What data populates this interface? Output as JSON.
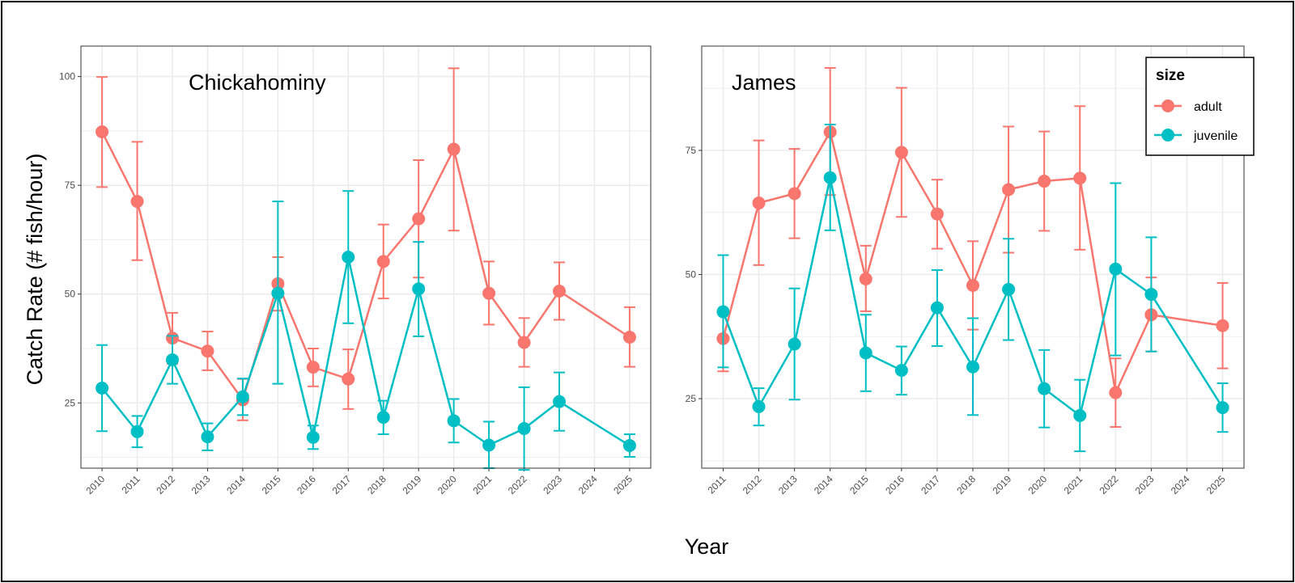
{
  "chart_data": {
    "type": "line",
    "xlabel": "Year",
    "ylabel": "Catch Rate (# fish/hour)",
    "legend": {
      "title": "size",
      "placement": "top-right",
      "entries": [
        "adult",
        "juvenile"
      ]
    },
    "colors": {
      "adult": "#F8766D",
      "juvenile": "#00BFC4",
      "grid": "#EBEBEB",
      "panel_border": "#333333"
    },
    "grid": true,
    "panels": [
      {
        "label": "Chickahominy",
        "x": [
          "2010",
          "2011",
          "2012",
          "2013",
          "2014",
          "2015",
          "2016",
          "2017",
          "2018",
          "2019",
          "2020",
          "2021",
          "2022",
          "2023",
          "2024",
          "2025"
        ],
        "yticks": [
          25,
          50,
          75,
          100
        ],
        "ylim": [
          10,
          107
        ],
        "series": [
          {
            "name": "adult",
            "points": [
              {
                "x": "2010",
                "y": 87.3,
                "lo": 74.6,
                "hi": 99.9
              },
              {
                "x": "2011",
                "y": 71.3,
                "lo": 57.8,
                "hi": 85.0
              },
              {
                "x": "2012",
                "y": 39.9,
                "lo": 34.0,
                "hi": 45.7
              },
              {
                "x": "2013",
                "y": 36.9,
                "lo": 32.5,
                "hi": 41.4
              },
              {
                "x": "2014",
                "y": 25.7,
                "lo": 21.0,
                "hi": 30.5
              },
              {
                "x": "2015",
                "y": 52.4,
                "lo": 46.2,
                "hi": 58.5
              },
              {
                "x": "2016",
                "y": 33.2,
                "lo": 28.8,
                "hi": 37.5
              },
              {
                "x": "2017",
                "y": 30.5,
                "lo": 23.6,
                "hi": 37.3
              },
              {
                "x": "2018",
                "y": 57.5,
                "lo": 49.0,
                "hi": 66.0
              },
              {
                "x": "2019",
                "y": 67.3,
                "lo": 53.8,
                "hi": 80.8
              },
              {
                "x": "2020",
                "y": 83.3,
                "lo": 64.6,
                "hi": 101.9
              },
              {
                "x": "2021",
                "y": 50.2,
                "lo": 43.0,
                "hi": 57.5
              },
              {
                "x": "2022",
                "y": 38.9,
                "lo": 33.3,
                "hi": 44.5
              },
              {
                "x": "2023",
                "y": 50.7,
                "lo": 44.1,
                "hi": 57.3
              },
              {
                "x": "2025",
                "y": 40.1,
                "lo": 33.3,
                "hi": 47.0
              }
            ]
          },
          {
            "name": "juvenile",
            "points": [
              {
                "x": "2010",
                "y": 28.4,
                "lo": 18.5,
                "hi": 38.3
              },
              {
                "x": "2011",
                "y": 18.4,
                "lo": 14.8,
                "hi": 22.0
              },
              {
                "x": "2012",
                "y": 34.9,
                "lo": 29.4,
                "hi": 40.4
              },
              {
                "x": "2013",
                "y": 17.2,
                "lo": 14.1,
                "hi": 20.3
              },
              {
                "x": "2014",
                "y": 26.4,
                "lo": 22.2,
                "hi": 30.6
              },
              {
                "x": "2015",
                "y": 50.2,
                "lo": 29.4,
                "hi": 71.3
              },
              {
                "x": "2016",
                "y": 17.1,
                "lo": 14.4,
                "hi": 19.8
              },
              {
                "x": "2017",
                "y": 58.5,
                "lo": 43.3,
                "hi": 73.7
              },
              {
                "x": "2018",
                "y": 21.7,
                "lo": 17.8,
                "hi": 25.5
              },
              {
                "x": "2019",
                "y": 51.2,
                "lo": 40.3,
                "hi": 62.0
              },
              {
                "x": "2020",
                "y": 20.9,
                "lo": 15.9,
                "hi": 25.9
              },
              {
                "x": "2021",
                "y": 15.3,
                "lo": 10.0,
                "hi": 20.7
              },
              {
                "x": "2022",
                "y": 19.1,
                "lo": 9.6,
                "hi": 28.6
              },
              {
                "x": "2023",
                "y": 25.3,
                "lo": 18.6,
                "hi": 32.0
              },
              {
                "x": "2025",
                "y": 15.2,
                "lo": 12.6,
                "hi": 17.8
              }
            ]
          }
        ]
      },
      {
        "label": "James",
        "x": [
          "2011",
          "2012",
          "2013",
          "2014",
          "2015",
          "2016",
          "2017",
          "2018",
          "2019",
          "2020",
          "2021",
          "2022",
          "2023",
          "2024",
          "2025"
        ],
        "yticks": [
          25,
          50,
          75
        ],
        "ylim": [
          11,
          96
        ],
        "series": [
          {
            "name": "adult",
            "points": [
              {
                "x": "2011",
                "y": 37.1,
                "lo": 30.5,
                "hi": 42.5
              },
              {
                "x": "2012",
                "y": 64.4,
                "lo": 51.9,
                "hi": 77.0
              },
              {
                "x": "2013",
                "y": 66.3,
                "lo": 57.3,
                "hi": 75.3
              },
              {
                "x": "2014",
                "y": 78.7,
                "lo": 66.0,
                "hi": 91.6
              },
              {
                "x": "2015",
                "y": 49.1,
                "lo": 42.6,
                "hi": 55.8
              },
              {
                "x": "2016",
                "y": 74.6,
                "lo": 61.6,
                "hi": 87.6
              },
              {
                "x": "2017",
                "y": 62.2,
                "lo": 55.2,
                "hi": 69.1
              },
              {
                "x": "2018",
                "y": 47.8,
                "lo": 38.9,
                "hi": 56.7
              },
              {
                "x": "2019",
                "y": 67.1,
                "lo": 54.4,
                "hi": 79.8
              },
              {
                "x": "2020",
                "y": 68.8,
                "lo": 58.8,
                "hi": 78.8
              },
              {
                "x": "2021",
                "y": 69.4,
                "lo": 55.0,
                "hi": 83.9
              },
              {
                "x": "2022",
                "y": 26.2,
                "lo": 19.3,
                "hi": 33.1
              },
              {
                "x": "2023",
                "y": 41.9,
                "lo": 34.5,
                "hi": 49.4
              },
              {
                "x": "2025",
                "y": 39.7,
                "lo": 31.1,
                "hi": 48.3
              }
            ]
          },
          {
            "name": "juvenile",
            "points": [
              {
                "x": "2011",
                "y": 42.5,
                "lo": 31.3,
                "hi": 53.9
              },
              {
                "x": "2012",
                "y": 23.4,
                "lo": 19.6,
                "hi": 27.1
              },
              {
                "x": "2013",
                "y": 36.0,
                "lo": 24.8,
                "hi": 47.2
              },
              {
                "x": "2014",
                "y": 69.5,
                "lo": 58.9,
                "hi": 80.2
              },
              {
                "x": "2015",
                "y": 34.2,
                "lo": 26.5,
                "hi": 41.9
              },
              {
                "x": "2016",
                "y": 30.7,
                "lo": 25.8,
                "hi": 35.5
              },
              {
                "x": "2017",
                "y": 43.3,
                "lo": 35.6,
                "hi": 50.9
              },
              {
                "x": "2018",
                "y": 31.4,
                "lo": 21.7,
                "hi": 41.2
              },
              {
                "x": "2019",
                "y": 47.0,
                "lo": 36.8,
                "hi": 57.2
              },
              {
                "x": "2020",
                "y": 27.0,
                "lo": 19.2,
                "hi": 34.8
              },
              {
                "x": "2021",
                "y": 21.6,
                "lo": 14.4,
                "hi": 28.8
              },
              {
                "x": "2022",
                "y": 51.1,
                "lo": 33.7,
                "hi": 68.4
              },
              {
                "x": "2023",
                "y": 46.0,
                "lo": 34.5,
                "hi": 57.5
              },
              {
                "x": "2025",
                "y": 23.2,
                "lo": 18.3,
                "hi": 28.1
              }
            ]
          }
        ]
      }
    ]
  }
}
